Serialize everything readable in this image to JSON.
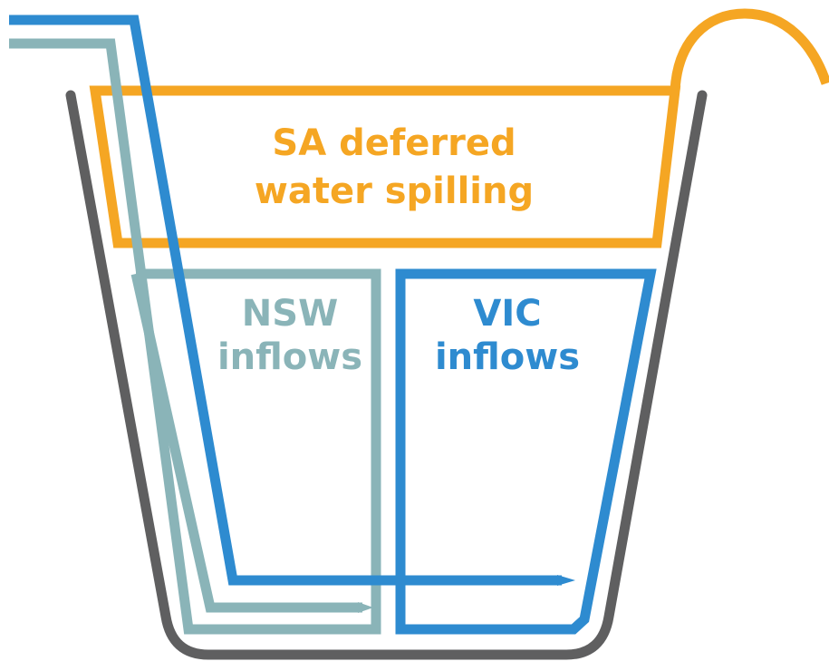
{
  "nodes": [
    {
      "lines": [
        "SA deferred",
        "water spilling"
      ]
    },
    {
      "lines": [
        "NSW",
        "inflows"
      ]
    },
    {
      "lines": [
        "VIC",
        "inflows"
      ]
    }
  ]
}
